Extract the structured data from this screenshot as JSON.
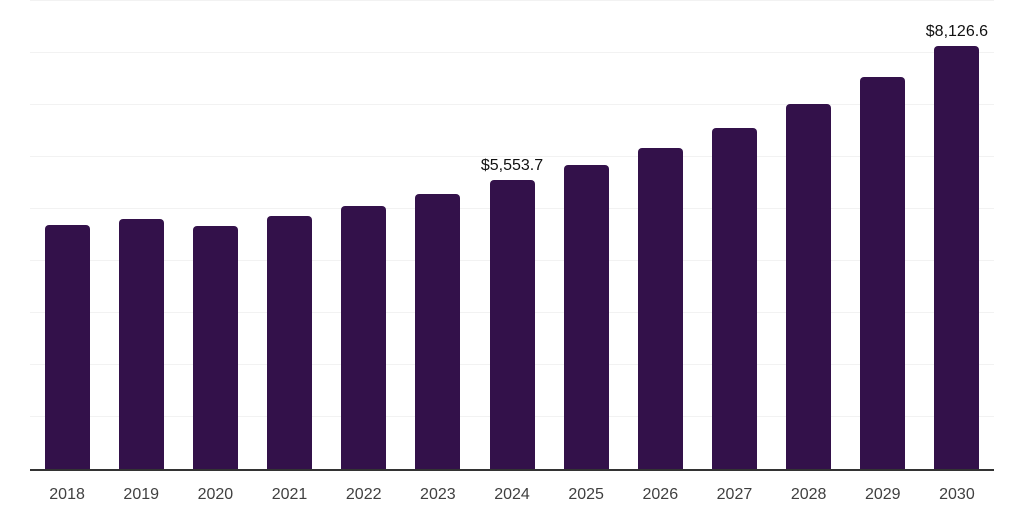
{
  "chart_data": {
    "type": "bar",
    "title": "",
    "xlabel": "",
    "ylabel": "",
    "categories": [
      "2018",
      "2019",
      "2020",
      "2021",
      "2022",
      "2023",
      "2024",
      "2025",
      "2026",
      "2027",
      "2028",
      "2029",
      "2030"
    ],
    "values": [
      4700,
      4800,
      4680,
      4860,
      5060,
      5280,
      5553.7,
      5850,
      6170,
      6560,
      7010,
      7530,
      8126.6
    ],
    "data_labels": {
      "2024": "$5,553.7",
      "2030": "$8,126.6"
    },
    "ylim": [
      0,
      9000
    ],
    "grid_interval": 1000,
    "grid": "horizontal-only",
    "legend": "none",
    "bar_color": "#33114A",
    "gridline_color": "#f2f2f2",
    "axis_color": "#333333",
    "data_label_color": "#111111",
    "tick_label_color": "#404040"
  }
}
